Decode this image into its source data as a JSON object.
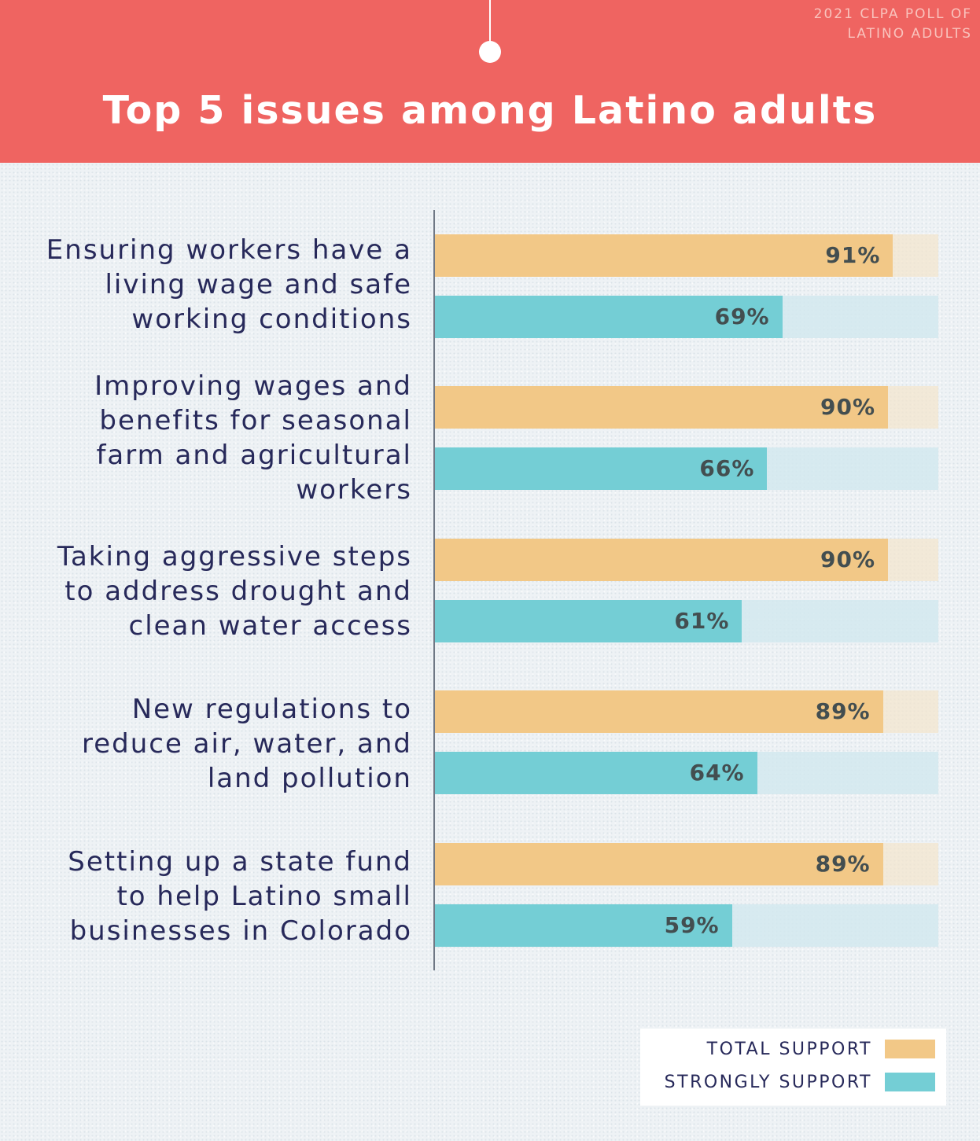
{
  "header": {
    "source_line1": "2021 CLPA POLL OF",
    "source_line2": "LATINO ADULTS",
    "title": "Top 5 issues among Latino adults"
  },
  "colors": {
    "header_bg": "#ef6461",
    "total_support": "#f2c887",
    "strongly_support": "#74ced5",
    "label_text": "#27295a",
    "value_text": "#434e50"
  },
  "legend": {
    "items": [
      {
        "label": "TOTAL SUPPORT",
        "color": "#f2c887"
      },
      {
        "label": "STRONGLY SUPPORT",
        "color": "#74ced5"
      }
    ]
  },
  "chart_data": {
    "type": "bar",
    "orientation": "horizontal",
    "title": "Top 5 issues among Latino adults",
    "subtitle": "2021 CLPA POLL OF LATINO ADULTS",
    "xlabel": "",
    "ylabel": "",
    "xlim": [
      0,
      100
    ],
    "grid": false,
    "legend_position": "bottom-right",
    "categories": [
      [
        "Ensuring workers have a",
        "living wage and safe",
        "working conditions"
      ],
      [
        "Improving wages and",
        "benefits for seasonal",
        "farm and agricultural",
        "workers"
      ],
      [
        "Taking aggressive steps",
        "to address drought and",
        "clean water access"
      ],
      [
        "New regulations to",
        "reduce air, water, and",
        "land pollution"
      ],
      [
        "Setting up a state fund",
        "to help Latino small",
        "businesses in Colorado"
      ]
    ],
    "series": [
      {
        "name": "TOTAL SUPPORT",
        "values": [
          91,
          90,
          90,
          89,
          89
        ],
        "labels": [
          "91%",
          "90%",
          "90%",
          "89%",
          "89%"
        ]
      },
      {
        "name": "STRONGLY SUPPORT",
        "values": [
          69,
          66,
          61,
          64,
          59
        ],
        "labels": [
          "69%",
          "66%",
          "61%",
          "64%",
          "59%"
        ]
      }
    ]
  }
}
